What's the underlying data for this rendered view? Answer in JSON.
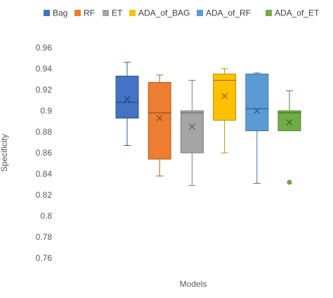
{
  "chart_data": {
    "type": "box",
    "title": "",
    "xlabel": "Models",
    "ylabel": "Specificity",
    "ylim": [
      0.76,
      0.96
    ],
    "yticks": [
      "0.76",
      "0.78",
      "0.8",
      "0.82",
      "0.84",
      "0.86",
      "0.88",
      "0.9",
      "0.92",
      "0.94",
      "0.96"
    ],
    "grid": false,
    "legend_position": "top",
    "series": [
      {
        "name": "Bag",
        "color": "#4472C4",
        "min": 0.867,
        "q1": 0.893,
        "median": 0.908,
        "q3": 0.933,
        "max": 0.946,
        "mean": 0.911,
        "outliers": []
      },
      {
        "name": "RF",
        "color": "#ED7D31",
        "min": 0.838,
        "q1": 0.854,
        "median": 0.898,
        "q3": 0.927,
        "max": 0.934,
        "mean": 0.893,
        "outliers": []
      },
      {
        "name": "ET",
        "color": "#A5A5A5",
        "min": 0.829,
        "q1": 0.86,
        "median": 0.898,
        "q3": 0.9,
        "max": 0.929,
        "mean": 0.885,
        "outliers": []
      },
      {
        "name": "ADA_of_BAG",
        "color": "#FFC000",
        "min": 0.86,
        "q1": 0.891,
        "median": 0.929,
        "q3": 0.935,
        "max": 0.94,
        "mean": 0.914,
        "outliers": []
      },
      {
        "name": "ADA_of_RF",
        "color": "#5B9BD5",
        "min": 0.831,
        "q1": 0.881,
        "median": 0.902,
        "q3": 0.935,
        "max": 0.936,
        "mean": 0.9,
        "outliers": []
      },
      {
        "name": "ADA_of_ET",
        "color": "#70AD47",
        "min": 0.881,
        "q1": 0.881,
        "median": 0.898,
        "q3": 0.9,
        "max": 0.919,
        "mean": 0.889,
        "outliers": [
          0.832
        ]
      }
    ]
  }
}
